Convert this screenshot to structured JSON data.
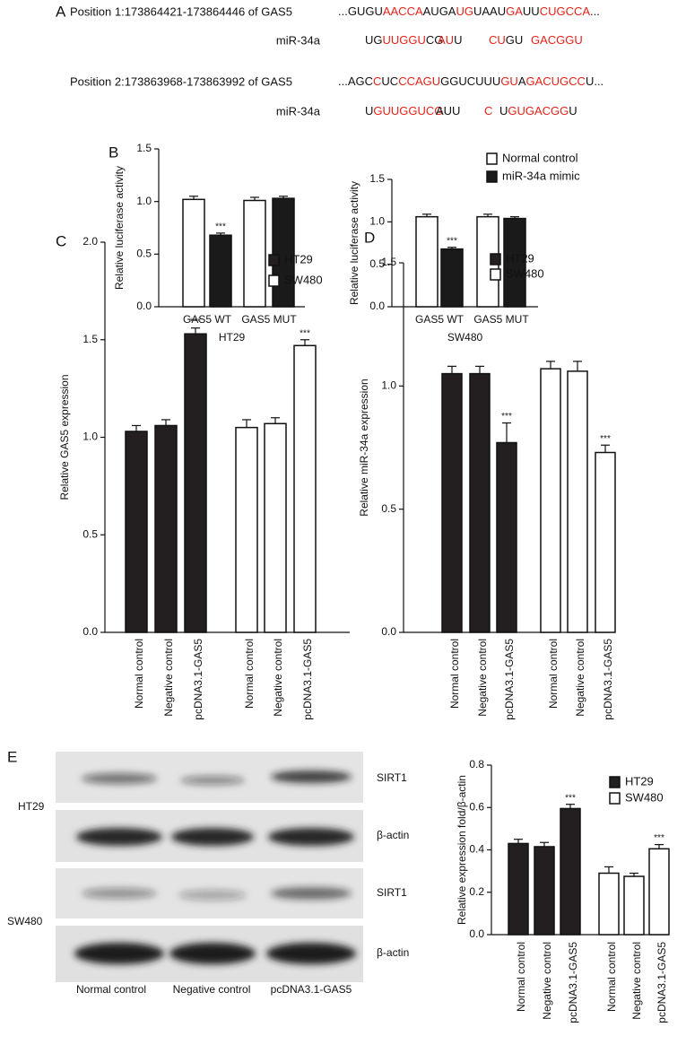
{
  "panel_labels": [
    "A",
    "B",
    "C",
    "D",
    "E"
  ],
  "alignments": [
    {
      "position": "Position 1:173864421-173864446 of GAS5",
      "gas5": [
        {
          "text": "...GUGU",
          "color": "#111111"
        },
        {
          "text": "AACCA",
          "color": "#e2231a"
        },
        {
          "text": "AUGA",
          "color": "#111111"
        },
        {
          "text": "UG",
          "color": "#e2231a"
        },
        {
          "text": "UAAU",
          "color": "#111111"
        },
        {
          "text": "GA",
          "color": "#e2231a"
        },
        {
          "text": "UU",
          "color": "#111111"
        },
        {
          "text": "CUGCCA",
          "color": "#e2231a"
        },
        {
          "text": "...",
          "color": "#111111"
        }
      ],
      "mir_label": "miR-34a",
      "mir": [
        [
          {
            "text": "UG",
            "color": "#111111"
          },
          {
            "text": "UUGGU",
            "color": "#e2231a"
          },
          {
            "text": "CG",
            "color": "#111111"
          }
        ],
        [
          {
            "text": "AU",
            "color": "#e2231a"
          },
          {
            "text": "U",
            "color": "#111111"
          }
        ],
        [
          {
            "text": "CU",
            "color": "#e2231a"
          },
          {
            "text": "GU",
            "color": "#111111"
          }
        ],
        [
          {
            "text": "GACGGU",
            "color": "#e2231a"
          }
        ]
      ]
    },
    {
      "position": "Position 2:173863968-173863992 of GAS5",
      "gas5": [
        {
          "text": "...AGC",
          "color": "#111111"
        },
        {
          "text": "C",
          "color": "#e2231a"
        },
        {
          "text": "UC",
          "color": "#111111"
        },
        {
          "text": "CCAGU",
          "color": "#e2231a"
        },
        {
          "text": "GGUCUUU",
          "color": "#111111"
        },
        {
          "text": "GU",
          "color": "#e2231a"
        },
        {
          "text": "A",
          "color": "#111111"
        },
        {
          "text": "GACUGCC",
          "color": "#e2231a"
        },
        {
          "text": "U...",
          "color": "#111111"
        }
      ],
      "mir_label": "miR-34a",
      "mir": [
        [
          {
            "text": "U",
            "color": "#111111"
          },
          {
            "text": "GUUGGUCG",
            "color": "#e2231a"
          }
        ],
        [
          {
            "text": "AUU",
            "color": "#111111"
          }
        ],
        [
          {
            "text": "C",
            "color": "#e2231a"
          }
        ],
        [
          {
            "text": "U",
            "color": "#111111"
          },
          {
            "text": "GUGACGG",
            "color": "#e2231a"
          },
          {
            "text": "U",
            "color": "#111111"
          }
        ]
      ]
    }
  ],
  "chart_data": [
    {
      "type": "bar",
      "x_label": "HT29",
      "y_label": "Relative luciferase activity",
      "categories": [
        "GAS5 WT",
        "GAS5 MUT"
      ],
      "series": [
        {
          "color": "#ffffff",
          "values": [
            1.02,
            1.01
          ],
          "errors": [
            0.03,
            0.03
          ],
          "significance": [
            null,
            null
          ]
        },
        {
          "color": "#1a1a1a",
          "values": [
            0.68,
            1.03
          ],
          "errors": [
            0.02,
            0.02
          ],
          "significance": [
            "***",
            null
          ]
        }
      ],
      "ylim": [
        0,
        1.5
      ],
      "yticks": [
        {
          "value": 0,
          "label": "0.0"
        },
        {
          "value": 0.5,
          "label": "0.5"
        },
        {
          "value": 1,
          "label": "1.0"
        },
        {
          "value": 1.5,
          "label": "1.5"
        }
      ],
      "legend": false
    },
    {
      "type": "bar",
      "x_label": "SW480",
      "y_label": "Relative luciferase activity",
      "categories": [
        "GAS5 WT",
        "GAS5 MUT"
      ],
      "series": [
        {
          "name": "Normal control",
          "color": "#ffffff",
          "values": [
            1.06,
            1.06
          ],
          "errors": [
            0.03,
            0.03
          ],
          "significance": [
            null,
            null
          ]
        },
        {
          "name": "miR-34a mimic",
          "color": "#1a1a1a",
          "values": [
            0.68,
            1.04
          ],
          "errors": [
            0.02,
            0.02
          ],
          "significance": [
            "***",
            null
          ]
        }
      ],
      "ylim": [
        0,
        1.5
      ],
      "yticks": [
        {
          "value": 0,
          "label": "0.0"
        },
        {
          "value": 0.5,
          "label": "0.5"
        },
        {
          "value": 1,
          "label": "1.0"
        },
        {
          "value": 1.5,
          "label": "1.5"
        }
      ],
      "legend": true
    },
    {
      "type": "bar",
      "y_label": "Relative GAS5 expression",
      "categories": [
        "Normal control",
        "Negative control",
        "pcDNA3.1-GAS5"
      ],
      "series": [
        {
          "name": "HT29",
          "color": "#231f20",
          "values": [
            1.03,
            1.06,
            1.53
          ],
          "errors": [
            0.03,
            0.03,
            0.03
          ],
          "significance": [
            null,
            null,
            "***"
          ]
        },
        {
          "name": "SW480",
          "color": "#ffffff",
          "values": [
            1.05,
            1.07,
            1.47
          ],
          "errors": [
            0.04,
            0.03,
            0.03
          ],
          "significance": [
            null,
            null,
            "***"
          ]
        }
      ],
      "ylim": [
        0,
        2
      ],
      "yticks": [
        {
          "value": 0,
          "label": "0.0"
        },
        {
          "value": 0.5,
          "label": "0.5"
        },
        {
          "value": 1,
          "label": "1.0"
        },
        {
          "value": 1.5,
          "label": "1.5"
        },
        {
          "value": 2,
          "label": "2.0"
        }
      ],
      "legend": true
    },
    {
      "type": "bar",
      "y_label": "Relative miR-34a expression",
      "categories": [
        "Normal control",
        "Negative control",
        "pcDNA3.1-GAS5"
      ],
      "series": [
        {
          "name": "HT29",
          "color": "#231f20",
          "values": [
            1.05,
            1.05,
            0.77
          ],
          "errors": [
            0.03,
            0.03,
            0.08
          ],
          "significance": [
            null,
            null,
            "***"
          ]
        },
        {
          "name": "SW480",
          "color": "#ffffff",
          "values": [
            1.07,
            1.06,
            0.73
          ],
          "errors": [
            0.03,
            0.04,
            0.03
          ],
          "significance": [
            null,
            null,
            "***"
          ]
        }
      ],
      "ylim": [
        0,
        1.5
      ],
      "yticks": [
        {
          "value": 0,
          "label": "0.0"
        },
        {
          "value": 0.5,
          "label": "0.5"
        },
        {
          "value": 1,
          "label": "1.0"
        },
        {
          "value": 1.5,
          "label": "1.5"
        }
      ],
      "legend": true
    },
    {
      "type": "bar",
      "y_label": "Relative expression fold/β-actin",
      "categories": [
        "Normal control",
        "Negative control",
        "pcDNA3.1-GAS5"
      ],
      "series": [
        {
          "name": "HT29",
          "color": "#231f20",
          "values": [
            0.43,
            0.415,
            0.595
          ],
          "errors": [
            0.02,
            0.02,
            0.02
          ],
          "significance": [
            null,
            null,
            "***"
          ]
        },
        {
          "name": "SW480",
          "color": "#ffffff",
          "values": [
            0.29,
            0.275,
            0.405
          ],
          "errors": [
            0.03,
            0.015,
            0.02
          ],
          "significance": [
            null,
            null,
            "***"
          ]
        }
      ],
      "ylim": [
        0,
        0.8
      ],
      "yticks": [
        {
          "value": 0,
          "label": "0.0"
        },
        {
          "value": 0.2,
          "label": "0.2"
        },
        {
          "value": 0.4,
          "label": "0.4"
        },
        {
          "value": 0.6,
          "label": "0.6"
        },
        {
          "value": 0.8,
          "label": "0.8"
        }
      ],
      "legend": true
    }
  ],
  "blot": {
    "cell_lines": [
      "HT29",
      "SW480"
    ],
    "proteins": [
      "SIRT1",
      "β-actin"
    ],
    "lanes": [
      "Normal control",
      "Negative control",
      "pcDNA3.1-GAS5"
    ]
  }
}
